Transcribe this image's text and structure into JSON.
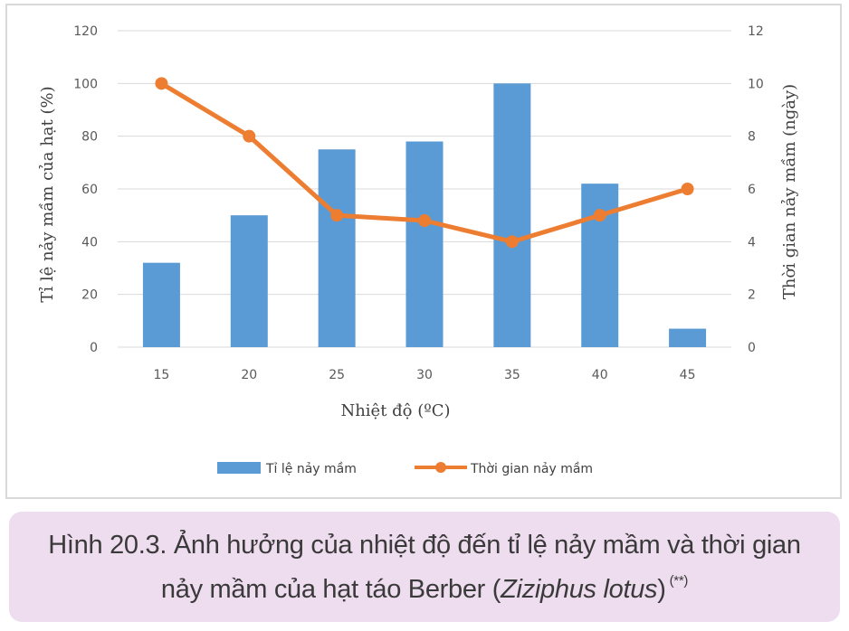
{
  "chart_data": {
    "type": "bar+line",
    "categories": [
      "15",
      "20",
      "25",
      "30",
      "35",
      "40",
      "45"
    ],
    "xlabel": "Nhiệt độ (ºC)",
    "ylabel_left": "Tỉ lệ nảy mầm của hạt (%)",
    "ylabel_right": "Thời gian nảy mầm (ngày)",
    "ylim_left": [
      0,
      120
    ],
    "ylim_right": [
      0,
      12
    ],
    "yticks_left": [
      "0",
      "20",
      "40",
      "60",
      "80",
      "100",
      "120"
    ],
    "yticks_right": [
      "0",
      "2",
      "4",
      "6",
      "8",
      "10",
      "12"
    ],
    "grid": true,
    "legend_position": "bottom",
    "series": [
      {
        "name": "Tỉ lệ nảy mầm",
        "type": "bar",
        "axis": "left",
        "color": "#5b9bd5",
        "values": [
          32,
          50,
          75,
          78,
          100,
          62,
          7
        ]
      },
      {
        "name": "Thời gian nảy mầm",
        "type": "line",
        "axis": "right",
        "color": "#ed7d31",
        "values": [
          10,
          8,
          5,
          4.8,
          4,
          5,
          6
        ]
      }
    ]
  },
  "caption": {
    "line1": "Hình 20.3. Ảnh hưởng của nhiệt độ đến tỉ lệ nảy mầm và thời gian",
    "line2_prefix": "nảy mầm của hạt táo Berber (",
    "line2_italic": "Ziziphus lotus",
    "line2_suffix": ")",
    "note": "(**)"
  }
}
